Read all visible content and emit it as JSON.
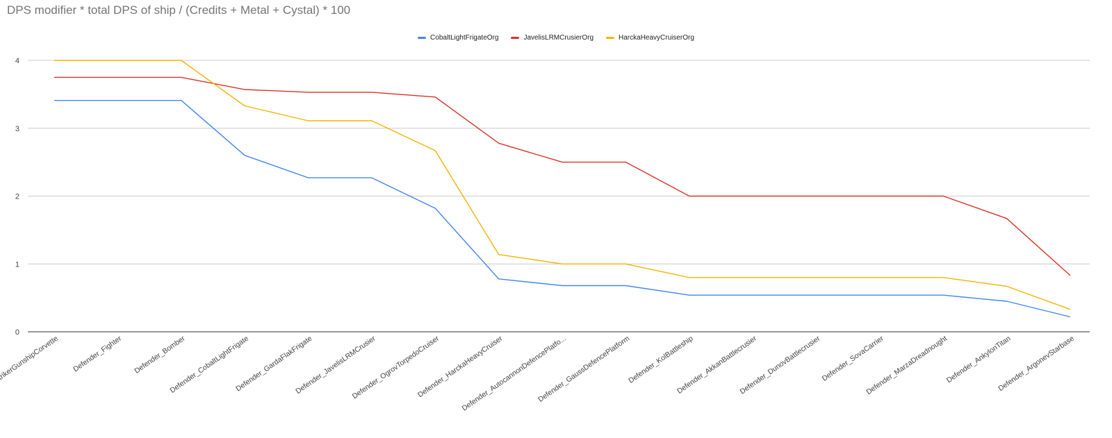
{
  "chart_data": {
    "type": "line",
    "title": "DPS modifier * total DPS of ship / (Credits + Metal + Cystal) * 100",
    "xlabel": "",
    "ylabel": "",
    "ylim": [
      0,
      4
    ],
    "yticks": [
      "0",
      "1",
      "2",
      "3",
      "4"
    ],
    "grid": true,
    "legend_position": "top",
    "categories": [
      "Defender_StrikerGunshipCorvette",
      "Defender_Fighter",
      "Defender_Bomber",
      "Defender_CobaltLightFrigate",
      "Defender_GardaFlakFrigate",
      "Defender_JavelisLRMCrusier",
      "Defender_OgrovTorpedoCruiser",
      "Defender_HarckaHeavyCruiser",
      "Defender_AutocannonDefencePlatfo...",
      "Defender_GaussDefencePlatform",
      "Defender_KolBattleship",
      "Defender_AkkanBattlecrusier",
      "Defender_DunovBattlecrusier",
      "Defender_SovaCarrier",
      "Defender_MarzaDreadnought",
      "Defender_AnkylonTitan",
      "Defender_ArgonevStarbase"
    ],
    "series": [
      {
        "name": "CobaltLightFrigateOrg",
        "color": "#4285f4",
        "values": [
          3.41,
          3.41,
          3.41,
          2.6,
          2.27,
          2.27,
          1.82,
          0.78,
          0.68,
          0.68,
          0.54,
          0.54,
          0.54,
          0.54,
          0.54,
          0.45,
          0.22
        ]
      },
      {
        "name": "JavelisLRMCrusierOrg",
        "color": "#db3226",
        "values": [
          3.75,
          3.75,
          3.75,
          3.57,
          3.53,
          3.53,
          3.46,
          2.78,
          2.5,
          2.5,
          2.0,
          2.0,
          2.0,
          2.0,
          2.0,
          1.67,
          0.83
        ]
      },
      {
        "name": "HarckaHeavyCruiserOrg",
        "color": "#f4b400",
        "values": [
          4.0,
          4.0,
          4.0,
          3.33,
          3.11,
          3.11,
          2.67,
          1.14,
          1.0,
          1.0,
          0.8,
          0.8,
          0.8,
          0.8,
          0.8,
          0.67,
          0.33
        ]
      }
    ]
  }
}
